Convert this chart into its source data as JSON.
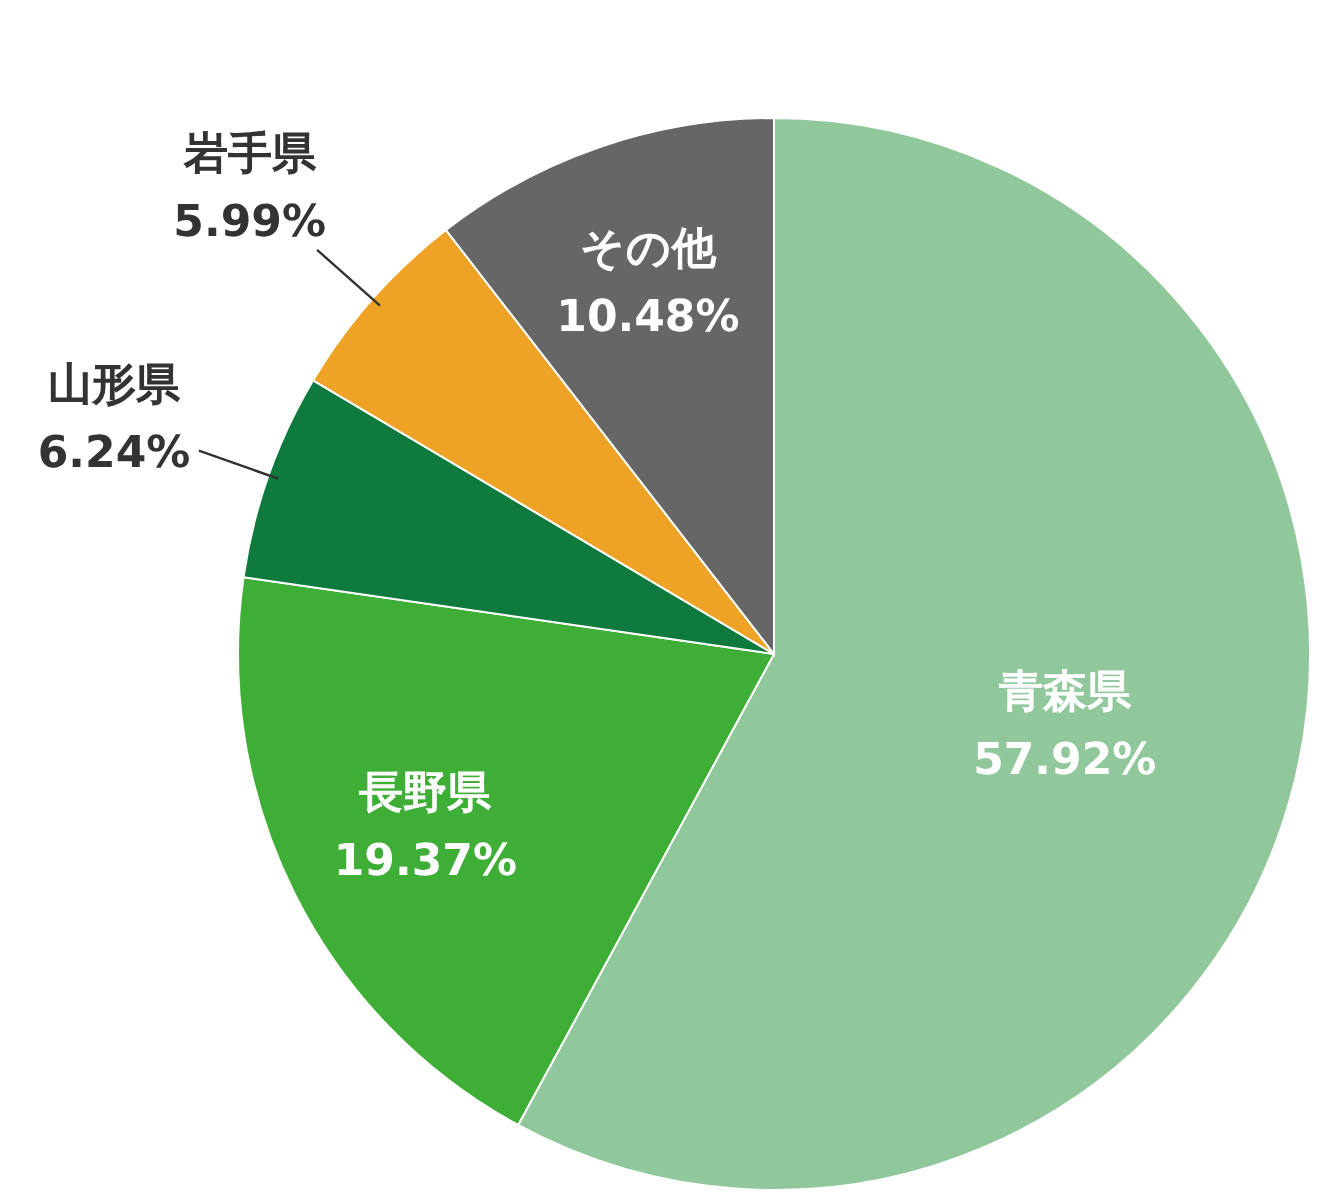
{
  "chart_data": {
    "type": "pie",
    "categories": [
      "青森県",
      "長野県",
      "山形県",
      "岩手県",
      "その他"
    ],
    "values": [
      57.92,
      19.37,
      6.24,
      5.99,
      10.48
    ],
    "value_labels": [
      "57.92%",
      "19.37%",
      "6.24%",
      "5.99%",
      "10.48%"
    ],
    "colors": [
      "#90c89c",
      "#3fae37",
      "#0f7a3e",
      "#eea327",
      "#666666"
    ]
  }
}
